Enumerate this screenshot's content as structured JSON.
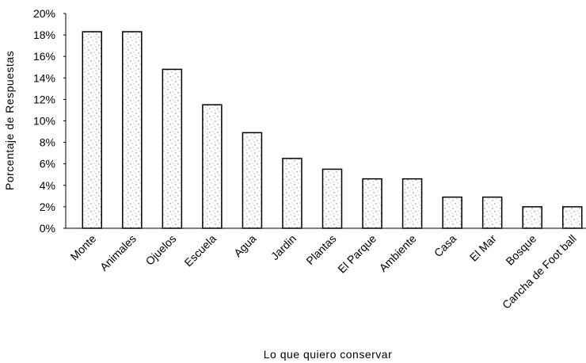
{
  "chart_data": {
    "type": "bar",
    "title": "",
    "xlabel": "Lo que quiero conservar",
    "ylabel": "Porcentaje de Respuestas",
    "ylim": [
      0,
      20
    ],
    "yticks": [
      "0%",
      "2%",
      "4%",
      "6%",
      "8%",
      "10%",
      "12%",
      "14%",
      "16%",
      "18%",
      "20%"
    ],
    "categories": [
      "Monte",
      "Animales",
      "Ojuelos",
      "Escuela",
      "Agua",
      "Jardin",
      "Plantas",
      "El Parque",
      "Ambiente",
      "Casa",
      "El Mar",
      "Bosque",
      "Cancha de Foot ball"
    ],
    "values": [
      18.3,
      18.3,
      14.8,
      11.5,
      8.9,
      6.5,
      5.5,
      4.6,
      4.6,
      2.9,
      2.9,
      2.0,
      2.0
    ],
    "grid": false,
    "bar_color": "#ffffff",
    "bar_texture": "stippled",
    "bar_edge_color": "#000000"
  }
}
